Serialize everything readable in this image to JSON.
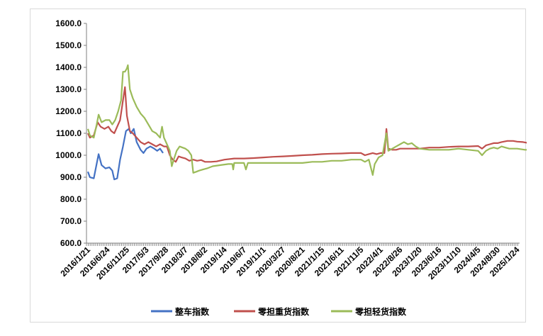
{
  "chart_data": {
    "type": "line",
    "title": "",
    "xlabel": "",
    "ylabel": "",
    "ylim": [
      600,
      1600
    ],
    "yticks": [
      "600.0",
      "700.0",
      "800.0",
      "900.0",
      "1000.0",
      "1100.0",
      "1200.0",
      "1300.0",
      "1400.0",
      "1500.0",
      "1600.0"
    ],
    "xtick_labels": [
      "2016/1/21",
      "2016/6/24",
      "2016/11/25",
      "2017/5/3",
      "2017/9/28",
      "2018/3/7",
      "2018/8/2",
      "2019/1/4",
      "2019/6/7",
      "2019/11/1",
      "2020/3/27",
      "2020/8/21",
      "2021/1/15",
      "2021/6/11",
      "2021/11/5",
      "2022/4/1",
      "2022/8/26",
      "2023/1/20",
      "2023/6/16",
      "2023/11/10",
      "2024/4/5",
      "2024/8/30",
      "2025/1/24"
    ],
    "grid": false,
    "legend_position": "bottom",
    "series": [
      {
        "name": "整车指数",
        "color": "#4472c4",
        "points": [
          [
            0,
            925
          ],
          [
            0.1,
            900
          ],
          [
            0.3,
            895
          ],
          [
            0.55,
            1005
          ],
          [
            0.7,
            955
          ],
          [
            0.9,
            940
          ],
          [
            1.1,
            945
          ],
          [
            1.25,
            930
          ],
          [
            1.35,
            890
          ],
          [
            1.5,
            895
          ],
          [
            1.65,
            980
          ],
          [
            1.8,
            1040
          ],
          [
            1.95,
            1110
          ],
          [
            2.1,
            1120
          ],
          [
            2.2,
            1100
          ],
          [
            2.35,
            1120
          ],
          [
            2.5,
            1060
          ],
          [
            2.7,
            1025
          ],
          [
            2.85,
            1010
          ],
          [
            3.0,
            1030
          ],
          [
            3.2,
            1040
          ],
          [
            3.4,
            1030
          ],
          [
            3.55,
            1020
          ],
          [
            3.7,
            1030
          ],
          [
            3.85,
            1010
          ]
        ]
      },
      {
        "name": "零担重货指数",
        "color": "#c0504d",
        "points": [
          [
            0,
            1100
          ],
          [
            0.1,
            1080
          ],
          [
            0.3,
            1090
          ],
          [
            0.5,
            1150
          ],
          [
            0.65,
            1130
          ],
          [
            0.85,
            1120
          ],
          [
            1.05,
            1130
          ],
          [
            1.2,
            1110
          ],
          [
            1.35,
            1100
          ],
          [
            1.5,
            1130
          ],
          [
            1.65,
            1160
          ],
          [
            1.8,
            1250
          ],
          [
            1.9,
            1310
          ],
          [
            2.0,
            1180
          ],
          [
            2.15,
            1110
          ],
          [
            2.3,
            1100
          ],
          [
            2.5,
            1080
          ],
          [
            2.7,
            1060
          ],
          [
            2.9,
            1050
          ],
          [
            3.1,
            1060
          ],
          [
            3.3,
            1050
          ],
          [
            3.5,
            1040
          ],
          [
            3.7,
            1050
          ],
          [
            3.9,
            1040
          ],
          [
            4.05,
            1040
          ],
          [
            4.2,
            1000
          ],
          [
            4.35,
            980
          ],
          [
            4.5,
            970
          ],
          [
            4.65,
            995
          ],
          [
            4.8,
            990
          ],
          [
            5.0,
            985
          ],
          [
            5.2,
            975
          ],
          [
            5.4,
            980
          ],
          [
            5.6,
            975
          ],
          [
            5.8,
            978
          ],
          [
            6.0,
            970
          ],
          [
            6.3,
            970
          ],
          [
            6.6,
            972
          ],
          [
            7.0,
            980
          ],
          [
            7.5,
            985
          ],
          [
            8.0,
            985
          ],
          [
            8.5,
            987
          ],
          [
            9.0,
            990
          ],
          [
            9.5,
            993
          ],
          [
            10.0,
            995
          ],
          [
            10.5,
            997
          ],
          [
            11.0,
            1000
          ],
          [
            11.5,
            1002
          ],
          [
            12.0,
            1005
          ],
          [
            12.5,
            1007
          ],
          [
            13.0,
            1008
          ],
          [
            13.5,
            1010
          ],
          [
            14.0,
            1010
          ],
          [
            14.2,
            1000
          ],
          [
            14.4,
            1005
          ],
          [
            14.6,
            1010
          ],
          [
            14.8,
            1005
          ],
          [
            15.0,
            1010
          ],
          [
            15.2,
            1010
          ],
          [
            15.3,
            1120
          ],
          [
            15.4,
            1030
          ],
          [
            15.6,
            1025
          ],
          [
            15.8,
            1025
          ],
          [
            16.0,
            1030
          ],
          [
            16.5,
            1030
          ],
          [
            17.0,
            1030
          ],
          [
            17.5,
            1035
          ],
          [
            18.0,
            1035
          ],
          [
            18.5,
            1038
          ],
          [
            19.0,
            1040
          ],
          [
            19.5,
            1040
          ],
          [
            20.0,
            1042
          ],
          [
            20.2,
            1030
          ],
          [
            20.4,
            1045
          ],
          [
            20.6,
            1050
          ],
          [
            20.8,
            1055
          ],
          [
            21.0,
            1055
          ],
          [
            21.2,
            1060
          ],
          [
            21.5,
            1065
          ],
          [
            21.8,
            1065
          ],
          [
            22.0,
            1062
          ],
          [
            22.3,
            1060
          ],
          [
            22.6,
            1055
          ],
          [
            22.8,
            1050
          ]
        ]
      },
      {
        "name": "零担轻货指数",
        "color": "#9bbb59",
        "points": [
          [
            0,
            1120
          ],
          [
            0.1,
            1090
          ],
          [
            0.3,
            1080
          ],
          [
            0.45,
            1140
          ],
          [
            0.55,
            1185
          ],
          [
            0.7,
            1150
          ],
          [
            0.9,
            1160
          ],
          [
            1.1,
            1160
          ],
          [
            1.25,
            1140
          ],
          [
            1.4,
            1160
          ],
          [
            1.55,
            1200
          ],
          [
            1.7,
            1250
          ],
          [
            1.8,
            1380
          ],
          [
            1.9,
            1380
          ],
          [
            2.0,
            1395
          ],
          [
            2.05,
            1410
          ],
          [
            2.15,
            1300
          ],
          [
            2.3,
            1260
          ],
          [
            2.5,
            1220
          ],
          [
            2.7,
            1190
          ],
          [
            2.9,
            1170
          ],
          [
            3.1,
            1140
          ],
          [
            3.3,
            1110
          ],
          [
            3.5,
            1100
          ],
          [
            3.7,
            1080
          ],
          [
            3.8,
            1130
          ],
          [
            3.9,
            1080
          ],
          [
            4.05,
            1050
          ],
          [
            4.2,
            1020
          ],
          [
            4.3,
            950
          ],
          [
            4.4,
            980
          ],
          [
            4.55,
            1020
          ],
          [
            4.7,
            1040
          ],
          [
            4.85,
            1035
          ],
          [
            5.0,
            1030
          ],
          [
            5.15,
            1020
          ],
          [
            5.3,
            1000
          ],
          [
            5.4,
            920
          ],
          [
            5.55,
            925
          ],
          [
            5.7,
            930
          ],
          [
            5.9,
            935
          ],
          [
            6.1,
            940
          ],
          [
            6.4,
            950
          ],
          [
            6.8,
            955
          ],
          [
            7.2,
            960
          ],
          [
            7.4,
            960
          ],
          [
            7.45,
            935
          ],
          [
            7.5,
            965
          ],
          [
            8.0,
            965
          ],
          [
            8.1,
            935
          ],
          [
            8.2,
            965
          ],
          [
            8.6,
            965
          ],
          [
            9.0,
            965
          ],
          [
            9.5,
            965
          ],
          [
            10.0,
            965
          ],
          [
            10.5,
            965
          ],
          [
            11.0,
            965
          ],
          [
            11.5,
            970
          ],
          [
            12.0,
            970
          ],
          [
            12.5,
            975
          ],
          [
            13.0,
            975
          ],
          [
            13.5,
            980
          ],
          [
            14.0,
            980
          ],
          [
            14.2,
            970
          ],
          [
            14.4,
            980
          ],
          [
            14.6,
            910
          ],
          [
            14.7,
            960
          ],
          [
            14.9,
            990
          ],
          [
            15.1,
            1000
          ],
          [
            15.3,
            1100
          ],
          [
            15.4,
            1020
          ],
          [
            15.6,
            1030
          ],
          [
            15.8,
            1040
          ],
          [
            16.0,
            1050
          ],
          [
            16.2,
            1060
          ],
          [
            16.4,
            1050
          ],
          [
            16.6,
            1055
          ],
          [
            16.8,
            1040
          ],
          [
            17.0,
            1030
          ],
          [
            17.5,
            1025
          ],
          [
            18.0,
            1025
          ],
          [
            18.5,
            1025
          ],
          [
            19.0,
            1030
          ],
          [
            19.5,
            1025
          ],
          [
            20.0,
            1020
          ],
          [
            20.2,
            1000
          ],
          [
            20.4,
            1020
          ],
          [
            20.6,
            1030
          ],
          [
            20.8,
            1035
          ],
          [
            21.0,
            1030
          ],
          [
            21.2,
            1040
          ],
          [
            21.4,
            1035
          ],
          [
            21.6,
            1030
          ],
          [
            21.8,
            1030
          ],
          [
            22.0,
            1030
          ],
          [
            22.4,
            1025
          ],
          [
            22.8,
            1025
          ]
        ]
      }
    ]
  }
}
